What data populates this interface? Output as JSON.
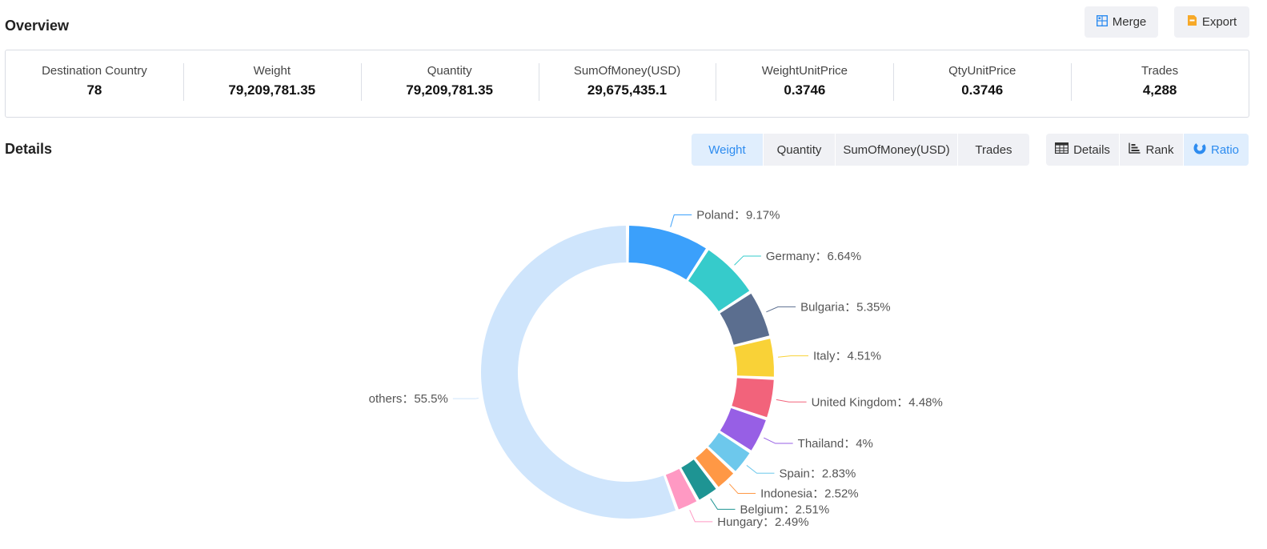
{
  "overview": {
    "title": "Overview",
    "merge_label": "Merge",
    "export_label": "Export",
    "stats": [
      {
        "label": "Destination Country",
        "value": "78"
      },
      {
        "label": "Weight",
        "value": "79,209,781.35"
      },
      {
        "label": "Quantity",
        "value": "79,209,781.35"
      },
      {
        "label": "SumOfMoney(USD)",
        "value": "29,675,435.1"
      },
      {
        "label": "WeightUnitPrice",
        "value": "0.3746"
      },
      {
        "label": "QtyUnitPrice",
        "value": "0.3746"
      },
      {
        "label": "Trades",
        "value": "4,288"
      }
    ]
  },
  "details": {
    "title": "Details",
    "metric_tabs": [
      {
        "label": "Weight",
        "active": true
      },
      {
        "label": "Quantity",
        "active": false
      },
      {
        "label": "SumOfMoney(USD)",
        "active": false
      },
      {
        "label": "Trades",
        "active": false
      }
    ],
    "view_tabs": [
      {
        "label": "Details",
        "icon": "table-icon",
        "active": false
      },
      {
        "label": "Rank",
        "icon": "bar-rank-icon",
        "active": false
      },
      {
        "label": "Ratio",
        "icon": "donut-icon",
        "active": true
      }
    ]
  },
  "colors": {
    "accent": "#2d8cf0",
    "active_bg": "#e0eefd"
  },
  "chart_data": {
    "type": "pie",
    "variant": "donut",
    "label_separator": "：",
    "slices": [
      {
        "name": "Poland",
        "value": 9.17,
        "label": "9.17%",
        "color": "#3ba0fb"
      },
      {
        "name": "Germany",
        "value": 6.64,
        "label": "6.64%",
        "color": "#36cbcb"
      },
      {
        "name": "Bulgaria",
        "value": 5.35,
        "label": "5.35%",
        "color": "#5b6e8f"
      },
      {
        "name": "Italy",
        "value": 4.51,
        "label": "4.51%",
        "color": "#f9d237"
      },
      {
        "name": "United Kingdom",
        "value": 4.48,
        "label": "4.48%",
        "color": "#f2637b"
      },
      {
        "name": "Thailand",
        "value": 4.0,
        "label": "4%",
        "color": "#975fe5"
      },
      {
        "name": "Spain",
        "value": 2.83,
        "label": "2.83%",
        "color": "#6dc8ec"
      },
      {
        "name": "Indonesia",
        "value": 2.52,
        "label": "2.52%",
        "color": "#ff9845"
      },
      {
        "name": "Belgium",
        "value": 2.51,
        "label": "2.51%",
        "color": "#1e9493"
      },
      {
        "name": "Hungary",
        "value": 2.49,
        "label": "2.49%",
        "color": "#ff99c3"
      },
      {
        "name": "others",
        "value": 55.5,
        "label": "55.5%",
        "color": "#cfe5fc"
      }
    ]
  }
}
